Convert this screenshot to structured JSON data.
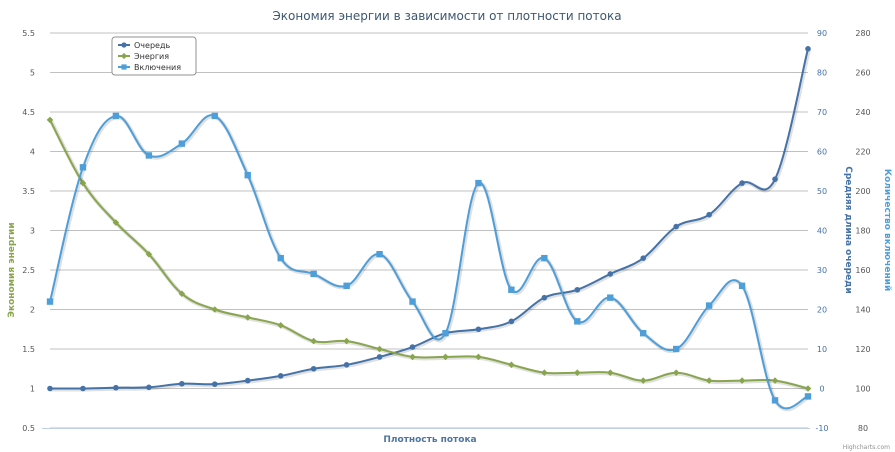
{
  "chart_data": {
    "type": "line",
    "title": "Экономия энергии в зависимости от плотности потока",
    "xlabel": "Плотность потока",
    "credits": "Highcharts.com",
    "axes": {
      "left": {
        "label": "Экономия энергии",
        "min": 0.5,
        "max": 5.5,
        "ticks": [
          "0.5",
          "1",
          "1.5",
          "2",
          "2.5",
          "3",
          "3.5",
          "4",
          "4.5",
          "5",
          "5.5"
        ],
        "color": "#89a54e"
      },
      "middle": {
        "label": "Средняя длина очереди",
        "min": -10,
        "max": 90,
        "ticks": [
          "-10",
          "0",
          "10",
          "20",
          "30",
          "40",
          "50",
          "60",
          "70",
          "80",
          "90"
        ],
        "color": "#4572a7"
      },
      "right": {
        "label": "Количество включений",
        "min": 80,
        "max": 280,
        "ticks": [
          "80",
          "100",
          "120",
          "140",
          "160",
          "180",
          "200",
          "220",
          "240",
          "260",
          "280"
        ],
        "color": "#4e9ed9"
      }
    },
    "legend": {
      "position": "top-left"
    },
    "series": [
      {
        "name": "Очередь",
        "axis": "middle",
        "color": "#4572a7",
        "marker": "circle",
        "values": [
          0,
          0,
          0.2,
          0.3,
          1.2,
          1.1,
          2,
          3.2,
          5,
          6,
          8,
          10.5,
          14,
          15,
          17,
          23,
          25,
          29,
          33,
          41,
          44,
          52,
          53,
          86
        ]
      },
      {
        "name": "Энергия",
        "axis": "left",
        "color": "#89a54e",
        "marker": "diamond",
        "values": [
          4.4,
          3.6,
          3.1,
          2.7,
          2.2,
          2.0,
          1.9,
          1.8,
          1.6,
          1.6,
          1.5,
          1.4,
          1.4,
          1.4,
          1.3,
          1.2,
          1.2,
          1.2,
          1.1,
          1.2,
          1.1,
          1.1,
          1.1,
          1.0
        ]
      },
      {
        "name": "Включения",
        "axis": "right",
        "color": "#4e9ed9",
        "marker": "square",
        "values": [
          144,
          212,
          238,
          218,
          224,
          238,
          208,
          166,
          158,
          152,
          168,
          144,
          128,
          204,
          150,
          166,
          134,
          146,
          128,
          120,
          142,
          152,
          94,
          96
        ]
      }
    ]
  }
}
